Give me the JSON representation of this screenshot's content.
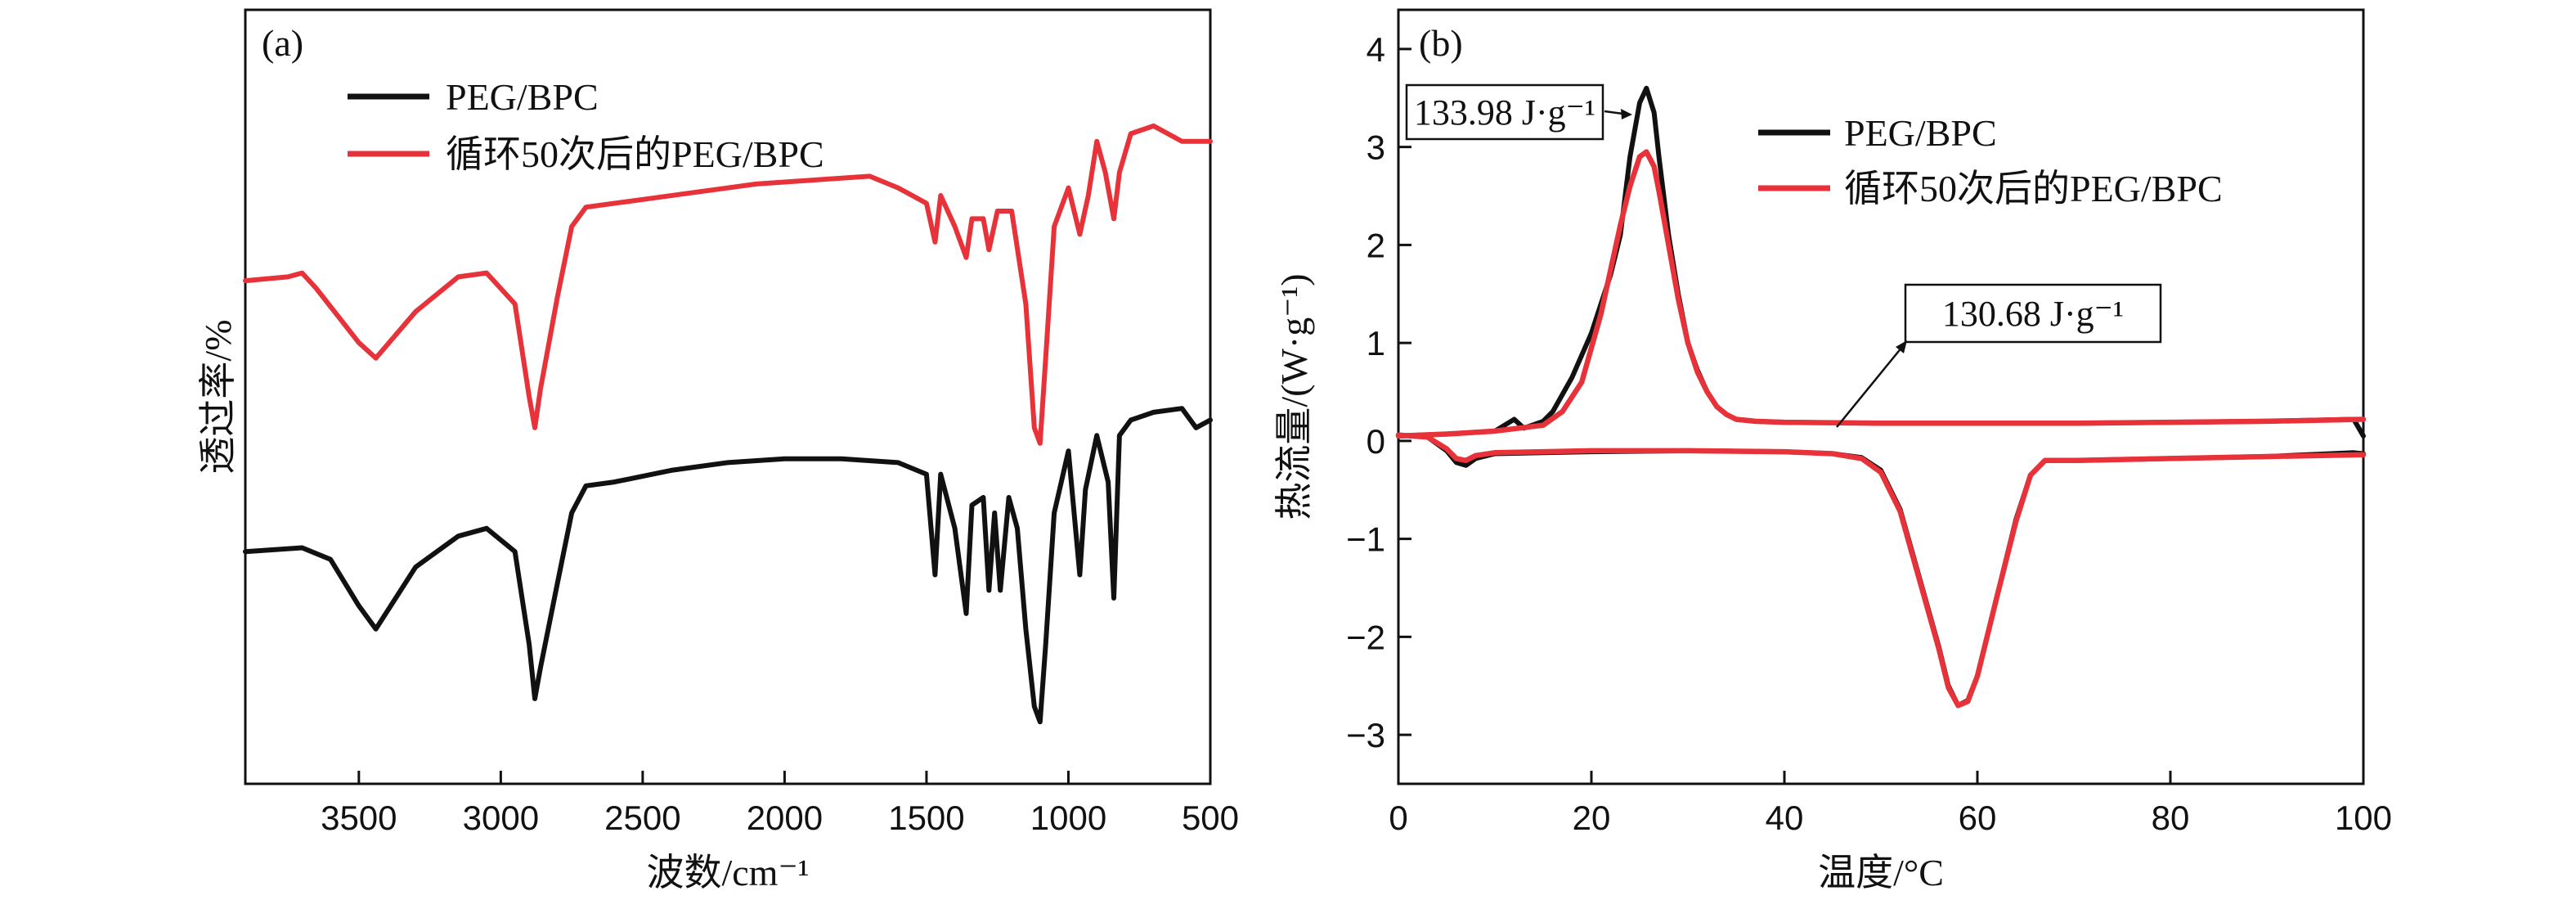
{
  "colors": {
    "black": "#111111",
    "red": "#e8323a"
  },
  "chart_data": [
    {
      "type": "line",
      "panel_label": "(a)",
      "xlabel": "波数/cm⁻¹",
      "ylabel": "透过率/%",
      "xlim": [
        3900,
        500
      ],
      "ylim": [
        0,
        100
      ],
      "x_reversed": true,
      "y_ticks_shown": false,
      "x_ticks": [
        3500,
        3000,
        2500,
        2000,
        1500,
        1000,
        500
      ],
      "legend_position": "top-left",
      "series": [
        {
          "name": "PEG/BPC",
          "color": "#111111",
          "points": [
            [
              3900,
              30
            ],
            [
              3700,
              30.5
            ],
            [
              3600,
              29
            ],
            [
              3500,
              23
            ],
            [
              3440,
              20
            ],
            [
              3300,
              28
            ],
            [
              3150,
              32
            ],
            [
              3050,
              33
            ],
            [
              2950,
              30
            ],
            [
              2900,
              18
            ],
            [
              2880,
              11
            ],
            [
              2860,
              15
            ],
            [
              2800,
              26
            ],
            [
              2750,
              35
            ],
            [
              2700,
              38.5
            ],
            [
              2600,
              39
            ],
            [
              2400,
              40.5
            ],
            [
              2200,
              41.5
            ],
            [
              2000,
              42
            ],
            [
              1800,
              42
            ],
            [
              1600,
              41.5
            ],
            [
              1500,
              40
            ],
            [
              1470,
              27
            ],
            [
              1450,
              40
            ],
            [
              1400,
              33
            ],
            [
              1360,
              22
            ],
            [
              1340,
              36
            ],
            [
              1300,
              37
            ],
            [
              1280,
              25
            ],
            [
              1260,
              35
            ],
            [
              1240,
              25
            ],
            [
              1210,
              37
            ],
            [
              1180,
              33
            ],
            [
              1150,
              20
            ],
            [
              1120,
              10
            ],
            [
              1100,
              8
            ],
            [
              1080,
              18
            ],
            [
              1050,
              35
            ],
            [
              1000,
              43
            ],
            [
              960,
              27
            ],
            [
              940,
              38
            ],
            [
              900,
              45
            ],
            [
              860,
              39
            ],
            [
              840,
              24
            ],
            [
              820,
              45
            ],
            [
              780,
              47
            ],
            [
              700,
              48
            ],
            [
              600,
              48.5
            ],
            [
              550,
              46
            ],
            [
              500,
              47
            ]
          ]
        },
        {
          "name": "循环50次后的PEG/BPC",
          "color": "#e8323a",
          "points": [
            [
              3900,
              65
            ],
            [
              3750,
              65.5
            ],
            [
              3700,
              66
            ],
            [
              3650,
              64
            ],
            [
              3500,
              57
            ],
            [
              3440,
              55
            ],
            [
              3300,
              61
            ],
            [
              3150,
              65.5
            ],
            [
              3050,
              66
            ],
            [
              2950,
              62
            ],
            [
              2900,
              50
            ],
            [
              2880,
              46
            ],
            [
              2860,
              51
            ],
            [
              2800,
              63
            ],
            [
              2750,
              72
            ],
            [
              2700,
              74.5
            ],
            [
              2500,
              75.5
            ],
            [
              2300,
              76.5
            ],
            [
              2100,
              77.5
            ],
            [
              1900,
              78
            ],
            [
              1700,
              78.5
            ],
            [
              1600,
              77
            ],
            [
              1550,
              76
            ],
            [
              1500,
              75
            ],
            [
              1470,
              70
            ],
            [
              1450,
              76
            ],
            [
              1400,
              72
            ],
            [
              1360,
              68
            ],
            [
              1340,
              73
            ],
            [
              1300,
              73
            ],
            [
              1280,
              69
            ],
            [
              1250,
              74
            ],
            [
              1200,
              74
            ],
            [
              1150,
              62
            ],
            [
              1120,
              46
            ],
            [
              1100,
              44
            ],
            [
              1080,
              55
            ],
            [
              1050,
              72
            ],
            [
              1000,
              77
            ],
            [
              960,
              71
            ],
            [
              930,
              76
            ],
            [
              900,
              83
            ],
            [
              870,
              79
            ],
            [
              840,
              73
            ],
            [
              820,
              79
            ],
            [
              780,
              84
            ],
            [
              700,
              85
            ],
            [
              600,
              83
            ],
            [
              500,
              83
            ]
          ]
        }
      ]
    },
    {
      "type": "line",
      "panel_label": "(b)",
      "xlabel": "温度/°C",
      "ylabel": "热流量/(W·g⁻¹)",
      "xlim": [
        0,
        100
      ],
      "ylim": [
        -3.5,
        4.4
      ],
      "x_ticks": [
        0,
        20,
        40,
        60,
        80,
        100
      ],
      "y_ticks": [
        4,
        3,
        2,
        1,
        0,
        -1,
        -2,
        -3
      ],
      "legend_position": "top-right",
      "annotations": [
        {
          "text": "133.98 J·g⁻¹",
          "target": [
            25.5,
            3.6
          ]
        },
        {
          "text": "130.68 J·g⁻¹",
          "target": [
            46,
            0.2
          ]
        }
      ],
      "series": [
        {
          "name": "PEG/BPC",
          "color": "#111111",
          "segments": [
            [
              [
                0,
                0.06
              ],
              [
                3,
                0.04
              ],
              [
                5,
                -0.1
              ],
              [
                6,
                -0.22
              ],
              [
                7,
                -0.25
              ],
              [
                8,
                -0.18
              ],
              [
                10,
                -0.13
              ],
              [
                15,
                -0.12
              ],
              [
                20,
                -0.11
              ],
              [
                30,
                -0.1
              ],
              [
                40,
                -0.11
              ],
              [
                45,
                -0.13
              ],
              [
                48,
                -0.17
              ],
              [
                50,
                -0.3
              ],
              [
                52,
                -0.7
              ],
              [
                54,
                -1.4
              ],
              [
                56,
                -2.1
              ],
              [
                57,
                -2.5
              ],
              [
                58,
                -2.7
              ],
              [
                59,
                -2.65
              ],
              [
                60,
                -2.4
              ],
              [
                62,
                -1.6
              ],
              [
                64,
                -0.8
              ],
              [
                65.5,
                -0.35
              ],
              [
                67,
                -0.2
              ],
              [
                70,
                -0.2
              ],
              [
                80,
                -0.18
              ],
              [
                90,
                -0.16
              ],
              [
                99,
                -0.12
              ],
              [
                100,
                -0.13
              ]
            ],
            [
              [
                0,
                0.05
              ],
              [
                5,
                0.07
              ],
              [
                10,
                0.1
              ],
              [
                12,
                0.22
              ],
              [
                13,
                0.13
              ],
              [
                15,
                0.2
              ],
              [
                16,
                0.3
              ],
              [
                18,
                0.65
              ],
              [
                20,
                1.1
              ],
              [
                21,
                1.4
              ],
              [
                22,
                1.7
              ],
              [
                23,
                2.1
              ],
              [
                24,
                2.9
              ],
              [
                25,
                3.45
              ],
              [
                25.7,
                3.6
              ],
              [
                26.5,
                3.35
              ],
              [
                27,
                2.9
              ],
              [
                28,
                2.1
              ],
              [
                29,
                1.5
              ],
              [
                30,
                1.0
              ],
              [
                31,
                0.72
              ],
              [
                32,
                0.5
              ],
              [
                33,
                0.35
              ],
              [
                34,
                0.27
              ],
              [
                35,
                0.22
              ],
              [
                37,
                0.2
              ],
              [
                40,
                0.19
              ],
              [
                50,
                0.18
              ],
              [
                60,
                0.18
              ],
              [
                70,
                0.18
              ],
              [
                80,
                0.19
              ],
              [
                90,
                0.2
              ],
              [
                99,
                0.22
              ],
              [
                100,
                0.05
              ]
            ]
          ]
        },
        {
          "name": "循环50次后的PEG/BPC",
          "color": "#e8323a",
          "segments": [
            [
              [
                0,
                0.06
              ],
              [
                3,
                0.04
              ],
              [
                5,
                -0.08
              ],
              [
                6,
                -0.18
              ],
              [
                7,
                -0.2
              ],
              [
                8,
                -0.15
              ],
              [
                10,
                -0.12
              ],
              [
                15,
                -0.11
              ],
              [
                20,
                -0.1
              ],
              [
                30,
                -0.1
              ],
              [
                40,
                -0.11
              ],
              [
                45,
                -0.13
              ],
              [
                48,
                -0.18
              ],
              [
                50,
                -0.32
              ],
              [
                52,
                -0.72
              ],
              [
                54,
                -1.42
              ],
              [
                56,
                -2.12
              ],
              [
                57,
                -2.52
              ],
              [
                58,
                -2.7
              ],
              [
                59,
                -2.66
              ],
              [
                60,
                -2.4
              ],
              [
                62,
                -1.6
              ],
              [
                64,
                -0.82
              ],
              [
                65.5,
                -0.35
              ],
              [
                67,
                -0.2
              ],
              [
                70,
                -0.2
              ],
              [
                80,
                -0.18
              ],
              [
                90,
                -0.16
              ],
              [
                100,
                -0.14
              ]
            ],
            [
              [
                0,
                0.05
              ],
              [
                5,
                0.07
              ],
              [
                10,
                0.1
              ],
              [
                15,
                0.16
              ],
              [
                17,
                0.3
              ],
              [
                19,
                0.6
              ],
              [
                20,
                0.95
              ],
              [
                21,
                1.3
              ],
              [
                22,
                1.75
              ],
              [
                23,
                2.2
              ],
              [
                24,
                2.6
              ],
              [
                25,
                2.9
              ],
              [
                25.7,
                2.95
              ],
              [
                26.5,
                2.8
              ],
              [
                27,
                2.55
              ],
              [
                28,
                2.0
              ],
              [
                29,
                1.45
              ],
              [
                30,
                1.0
              ],
              [
                31,
                0.7
              ],
              [
                32,
                0.5
              ],
              [
                33,
                0.35
              ],
              [
                34,
                0.27
              ],
              [
                35,
                0.22
              ],
              [
                37,
                0.2
              ],
              [
                40,
                0.19
              ],
              [
                50,
                0.18
              ],
              [
                60,
                0.18
              ],
              [
                70,
                0.18
              ],
              [
                80,
                0.19
              ],
              [
                90,
                0.2
              ],
              [
                100,
                0.22
              ]
            ]
          ]
        }
      ]
    }
  ]
}
